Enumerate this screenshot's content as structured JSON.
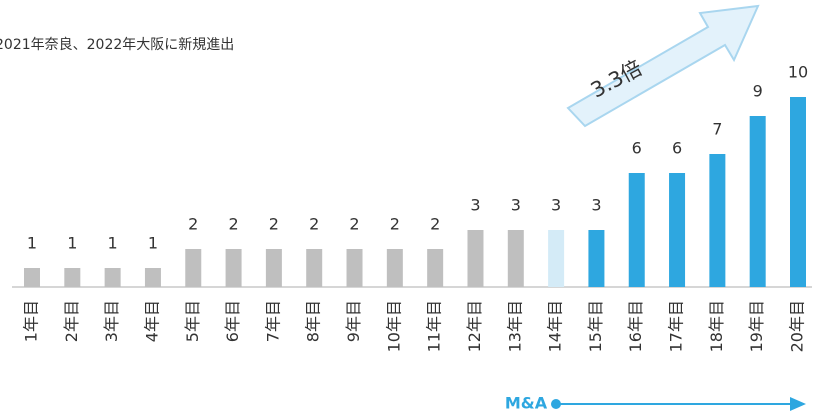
{
  "chart_data": {
    "type": "bar",
    "subtitle": "2021年奈良、2022年大阪に新規進出",
    "categories": [
      "1年目",
      "2年目",
      "3年目",
      "4年目",
      "5年目",
      "6年目",
      "7年目",
      "8年目",
      "9年目",
      "10年目",
      "11年目",
      "12年目",
      "13年目",
      "14年目",
      "15年目",
      "16年目",
      "17年目",
      "18年目",
      "19年目",
      "20年目"
    ],
    "values": [
      1,
      1,
      1,
      1,
      2,
      2,
      2,
      2,
      2,
      2,
      2,
      3,
      3,
      3,
      3,
      6,
      6,
      7,
      9,
      10
    ],
    "colors": [
      "#bfbfbf",
      "#bfbfbf",
      "#bfbfbf",
      "#bfbfbf",
      "#bfbfbf",
      "#bfbfbf",
      "#bfbfbf",
      "#bfbfbf",
      "#bfbfbf",
      "#bfbfbf",
      "#bfbfbf",
      "#bfbfbf",
      "#bfbfbf",
      "#d4ebf7",
      "#2ea7e0",
      "#2ea7e0",
      "#2ea7e0",
      "#2ea7e0",
      "#2ea7e0",
      "#2ea7e0"
    ],
    "ylim": [
      0,
      10
    ],
    "growth_label": "3.3倍",
    "range_label": "M&A"
  }
}
